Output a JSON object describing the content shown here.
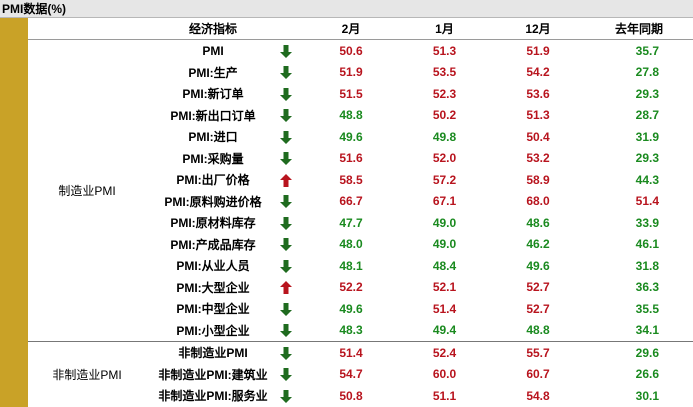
{
  "title": "PMI数据(%)",
  "headers": [
    "经济指标",
    "2月",
    "1月",
    "12月",
    "去年同期"
  ],
  "colors": {
    "red": "#b8141e",
    "green": "#1a8a1f",
    "up_arrow": "#b8141e",
    "down_arrow": "#1f6b1f",
    "strip": "#c9a227"
  },
  "groups": [
    {
      "label": "制造业PMI",
      "rows": [
        {
          "name": "PMI",
          "dir": "down",
          "v": [
            {
              "t": "50.6",
              "c": "red"
            },
            {
              "t": "51.3",
              "c": "red"
            },
            {
              "t": "51.9",
              "c": "red"
            },
            {
              "t": "35.7",
              "c": "green"
            }
          ]
        },
        {
          "name": "PMI:生产",
          "dir": "down",
          "v": [
            {
              "t": "51.9",
              "c": "red"
            },
            {
              "t": "53.5",
              "c": "red"
            },
            {
              "t": "54.2",
              "c": "red"
            },
            {
              "t": "27.8",
              "c": "green"
            }
          ]
        },
        {
          "name": "PMI:新订单",
          "dir": "down",
          "v": [
            {
              "t": "51.5",
              "c": "red"
            },
            {
              "t": "52.3",
              "c": "red"
            },
            {
              "t": "53.6",
              "c": "red"
            },
            {
              "t": "29.3",
              "c": "green"
            }
          ]
        },
        {
          "name": "PMI:新出口订单",
          "dir": "down",
          "v": [
            {
              "t": "48.8",
              "c": "green"
            },
            {
              "t": "50.2",
              "c": "red"
            },
            {
              "t": "51.3",
              "c": "red"
            },
            {
              "t": "28.7",
              "c": "green"
            }
          ]
        },
        {
          "name": "PMI:进口",
          "dir": "down",
          "v": [
            {
              "t": "49.6",
              "c": "green"
            },
            {
              "t": "49.8",
              "c": "green"
            },
            {
              "t": "50.4",
              "c": "red"
            },
            {
              "t": "31.9",
              "c": "green"
            }
          ]
        },
        {
          "name": "PMI:采购量",
          "dir": "down",
          "v": [
            {
              "t": "51.6",
              "c": "red"
            },
            {
              "t": "52.0",
              "c": "red"
            },
            {
              "t": "53.2",
              "c": "red"
            },
            {
              "t": "29.3",
              "c": "green"
            }
          ]
        },
        {
          "name": "PMI:出厂价格",
          "dir": "up",
          "v": [
            {
              "t": "58.5",
              "c": "red"
            },
            {
              "t": "57.2",
              "c": "red"
            },
            {
              "t": "58.9",
              "c": "red"
            },
            {
              "t": "44.3",
              "c": "green"
            }
          ]
        },
        {
          "name": "PMI:原料购进价格",
          "dir": "down",
          "v": [
            {
              "t": "66.7",
              "c": "red"
            },
            {
              "t": "67.1",
              "c": "red"
            },
            {
              "t": "68.0",
              "c": "red"
            },
            {
              "t": "51.4",
              "c": "red"
            }
          ]
        },
        {
          "name": "PMI:原材料库存",
          "dir": "down",
          "v": [
            {
              "t": "47.7",
              "c": "green"
            },
            {
              "t": "49.0",
              "c": "green"
            },
            {
              "t": "48.6",
              "c": "green"
            },
            {
              "t": "33.9",
              "c": "green"
            }
          ]
        },
        {
          "name": "PMI:产成品库存",
          "dir": "down",
          "v": [
            {
              "t": "48.0",
              "c": "green"
            },
            {
              "t": "49.0",
              "c": "green"
            },
            {
              "t": "46.2",
              "c": "green"
            },
            {
              "t": "46.1",
              "c": "green"
            }
          ]
        },
        {
          "name": "PMI:从业人员",
          "dir": "down",
          "v": [
            {
              "t": "48.1",
              "c": "green"
            },
            {
              "t": "48.4",
              "c": "green"
            },
            {
              "t": "49.6",
              "c": "green"
            },
            {
              "t": "31.8",
              "c": "green"
            }
          ]
        },
        {
          "name": "PMI:大型企业",
          "dir": "up",
          "v": [
            {
              "t": "52.2",
              "c": "red"
            },
            {
              "t": "52.1",
              "c": "red"
            },
            {
              "t": "52.7",
              "c": "red"
            },
            {
              "t": "36.3",
              "c": "green"
            }
          ]
        },
        {
          "name": "PMI:中型企业",
          "dir": "down",
          "v": [
            {
              "t": "49.6",
              "c": "green"
            },
            {
              "t": "51.4",
              "c": "red"
            },
            {
              "t": "52.7",
              "c": "red"
            },
            {
              "t": "35.5",
              "c": "green"
            }
          ]
        },
        {
          "name": "PMI:小型企业",
          "dir": "down",
          "v": [
            {
              "t": "48.3",
              "c": "green"
            },
            {
              "t": "49.4",
              "c": "green"
            },
            {
              "t": "48.8",
              "c": "green"
            },
            {
              "t": "34.1",
              "c": "green"
            }
          ]
        }
      ]
    },
    {
      "label": "非制造业PMI",
      "rows": [
        {
          "name": "非制造业PMI",
          "dir": "down",
          "v": [
            {
              "t": "51.4",
              "c": "red"
            },
            {
              "t": "52.4",
              "c": "red"
            },
            {
              "t": "55.7",
              "c": "red"
            },
            {
              "t": "29.6",
              "c": "green"
            }
          ]
        },
        {
          "name": "非制造业PMI:建筑业",
          "dir": "down",
          "v": [
            {
              "t": "54.7",
              "c": "red"
            },
            {
              "t": "60.0",
              "c": "red"
            },
            {
              "t": "60.7",
              "c": "red"
            },
            {
              "t": "26.6",
              "c": "green"
            }
          ]
        },
        {
          "name": "非制造业PMI:服务业",
          "dir": "down",
          "v": [
            {
              "t": "50.8",
              "c": "red"
            },
            {
              "t": "51.1",
              "c": "red"
            },
            {
              "t": "54.8",
              "c": "red"
            },
            {
              "t": "30.1",
              "c": "green"
            }
          ]
        }
      ]
    }
  ]
}
